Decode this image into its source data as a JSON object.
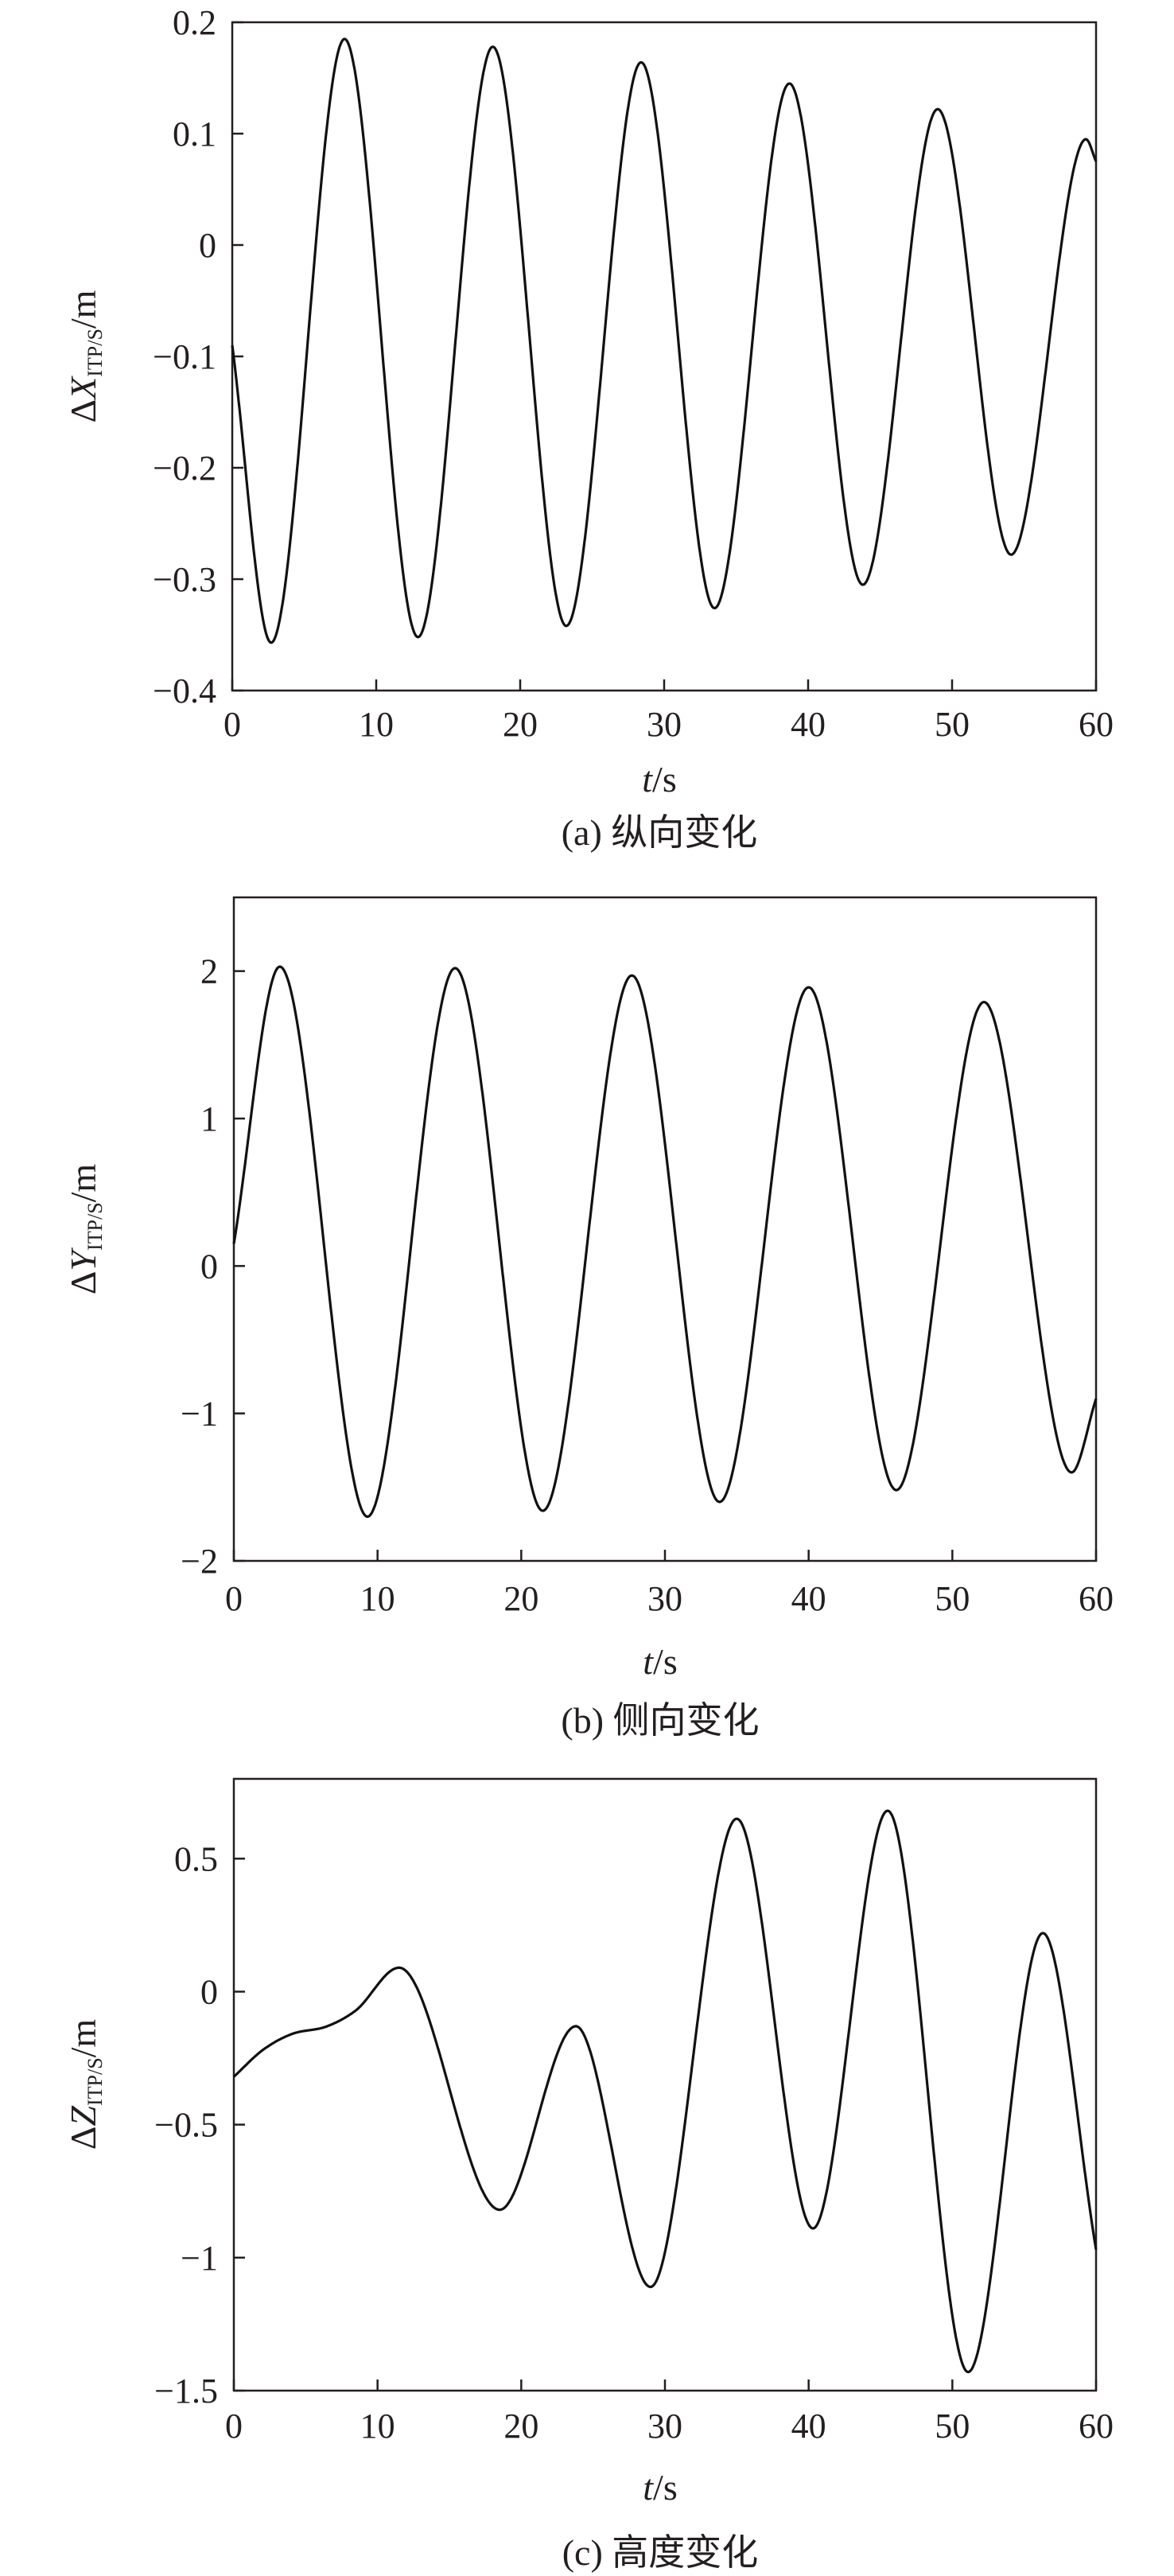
{
  "chart_data": [
    {
      "type": "line",
      "caption": "(a) 纵向变化",
      "xlabel": {
        "var": "t",
        "unit": "/s"
      },
      "ylabel": {
        "delta": "Δ",
        "var": "X",
        "sub": "ITP/S",
        "unit": "/m"
      },
      "xlim": [
        0,
        60
      ],
      "ylim": [
        -0.4,
        0.2
      ],
      "xticks": [
        0,
        10,
        20,
        30,
        40,
        50,
        60
      ],
      "xtick_labels": [
        "0",
        "10",
        "20",
        "30",
        "40",
        "50",
        "60"
      ],
      "yticks": [
        -0.4,
        -0.3,
        -0.2,
        -0.1,
        0,
        0.1,
        0.2
      ],
      "ytick_labels": [
        "−0.4",
        "−0.3",
        "−0.2",
        "−0.1",
        "0",
        "0.1",
        "0.2"
      ],
      "grid": false,
      "color": "#111111",
      "x": [
        0,
        2.7,
        7.8,
        12.9,
        18.1,
        23.2,
        28.4,
        33.5,
        38.7,
        43.8,
        49.0,
        54.1,
        59.3,
        60
      ],
      "y": [
        -0.09,
        -0.357,
        0.185,
        -0.352,
        0.178,
        -0.342,
        0.164,
        -0.326,
        0.145,
        -0.305,
        0.122,
        -0.278,
        0.095,
        0.075
      ]
    },
    {
      "type": "line",
      "caption": "(b) 侧向变化",
      "xlabel": {
        "var": "t",
        "unit": "/s"
      },
      "ylabel": {
        "delta": "Δ",
        "var": "Y",
        "sub": "ITP/S",
        "unit": "/m"
      },
      "xlim": [
        0,
        60
      ],
      "ylim": [
        -2,
        2.5
      ],
      "xticks": [
        0,
        10,
        20,
        30,
        40,
        50,
        60
      ],
      "xtick_labels": [
        "0",
        "10",
        "20",
        "30",
        "40",
        "50",
        "60"
      ],
      "yticks": [
        -2,
        -1,
        0,
        1,
        2
      ],
      "ytick_labels": [
        "−2",
        "−1",
        "0",
        "1",
        "2"
      ],
      "grid": false,
      "color": "#111111",
      "x": [
        0,
        3.2,
        9.3,
        15.4,
        21.5,
        27.7,
        33.8,
        40.0,
        46.1,
        52.2,
        58.3,
        60
      ],
      "y": [
        0.15,
        2.03,
        -1.7,
        2.02,
        -1.66,
        1.97,
        -1.6,
        1.89,
        -1.52,
        1.79,
        -1.4,
        -0.9
      ]
    },
    {
      "type": "line",
      "caption": "(c) 高度变化",
      "xlabel": {
        "var": "t",
        "unit": "/s"
      },
      "ylabel": {
        "delta": "Δ",
        "var": "Z",
        "sub": "ITP/S",
        "unit": "/m"
      },
      "xlim": [
        0,
        60
      ],
      "ylim": [
        -1.5,
        0.8
      ],
      "xticks": [
        0,
        10,
        20,
        30,
        40,
        50,
        60
      ],
      "xtick_labels": [
        "0",
        "10",
        "20",
        "30",
        "40",
        "50",
        "60"
      ],
      "yticks": [
        -1.5,
        -1,
        -0.5,
        0,
        0.5
      ],
      "ytick_labels": [
        "−1.5",
        "−1",
        "−0.5",
        "0",
        "0.5"
      ],
      "grid": false,
      "color": "#111111",
      "x": [
        0,
        2,
        4,
        6.5,
        8.5,
        11.5,
        18.5,
        23.8,
        29.0,
        35.0,
        40.3,
        45.5,
        51.1,
        56.3,
        60
      ],
      "y": [
        -0.32,
        -0.22,
        -0.16,
        -0.13,
        -0.07,
        0.09,
        -0.82,
        -0.13,
        -1.11,
        0.65,
        -0.89,
        0.68,
        -1.43,
        0.22,
        -0.97
      ]
    }
  ]
}
